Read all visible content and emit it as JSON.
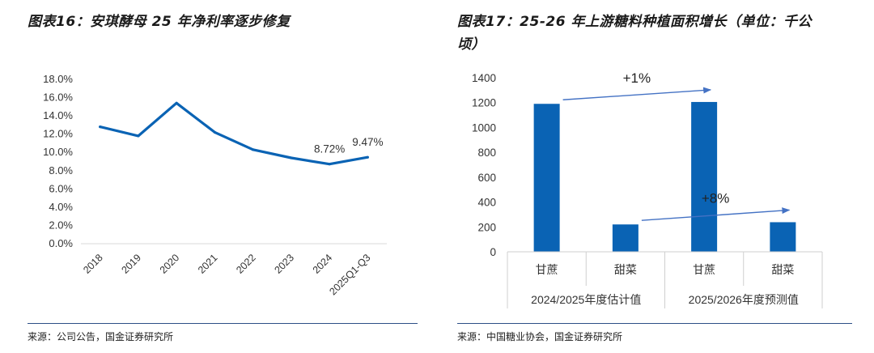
{
  "left": {
    "title": "图表16：安琪酵母 25 年净利率逐步修复",
    "source": "来源：公司公告，国金证券研究所"
  },
  "right": {
    "title_line1": "图表17：25-26 年上游糖料种植面积增长（单位：千公",
    "title_line2": "顷）",
    "source": "来源：中国糖业协会，国金证券研究所"
  },
  "colors": {
    "series": "#0a63b4",
    "annotation_arrow": "#4472c4",
    "rule": "#2c4f86"
  },
  "chart_data": [
    {
      "type": "line",
      "title": "安琪酵母 25 年净利率逐步修复",
      "categories": [
        "2018",
        "2019",
        "2020",
        "2021",
        "2022",
        "2023",
        "2024",
        "2025Q1-Q3"
      ],
      "values": [
        12.8,
        11.8,
        15.4,
        12.2,
        10.3,
        9.4,
        8.72,
        9.47
      ],
      "ylim": [
        0,
        18
      ],
      "y_ticks": [
        "0.0%",
        "2.0%",
        "4.0%",
        "6.0%",
        "8.0%",
        "10.0%",
        "12.0%",
        "14.0%",
        "16.0%",
        "18.0%"
      ],
      "data_labels": [
        {
          "index": 6,
          "text": "8.72%"
        },
        {
          "index": 7,
          "text": "9.47%"
        }
      ],
      "xlabel": "",
      "ylabel": "",
      "grid": false
    },
    {
      "type": "bar",
      "title": "25-26 年上游糖料种植面积增长（单位：千公顷）",
      "categories": [
        "甘蔗",
        "甜菜",
        "甘蔗",
        "甜菜"
      ],
      "groups": [
        {
          "label": "2024/2025年度估计值",
          "span": [
            0,
            1
          ]
        },
        {
          "label": "2025/2026年度预测值",
          "span": [
            2,
            3
          ]
        }
      ],
      "values": [
        1190,
        220,
        1205,
        238
      ],
      "ylim": [
        0,
        1400
      ],
      "y_ticks": [
        "0",
        "200",
        "400",
        "600",
        "800",
        "1000",
        "1200",
        "1400"
      ],
      "annotations": [
        {
          "text": "+1%",
          "from": 0,
          "to": 2
        },
        {
          "text": "+8%",
          "from": 1,
          "to": 3
        }
      ],
      "xlabel": "",
      "ylabel": "",
      "grid": false
    }
  ]
}
